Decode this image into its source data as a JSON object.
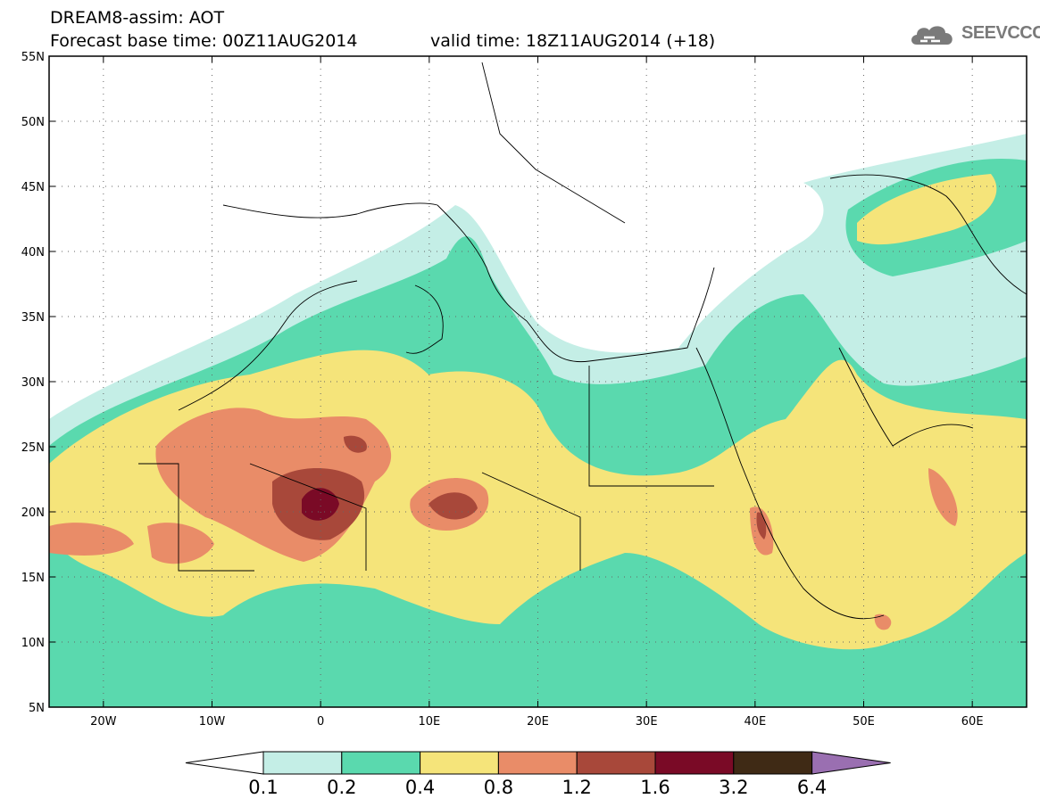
{
  "header": {
    "title": "DREAM8-assim: AOT",
    "base_time": "Forecast base time: 00Z11AUG2014",
    "valid_time": "valid time: 18Z11AUG2014 (+18)"
  },
  "logo": {
    "text": "SEEVCCC",
    "icon": "cloud-icon"
  },
  "map": {
    "lon_range": [
      -25,
      65
    ],
    "lat_range": [
      5,
      55
    ],
    "lon_ticks": [
      {
        "value": -20,
        "label": "20W"
      },
      {
        "value": -10,
        "label": "10W"
      },
      {
        "value": 0,
        "label": "0"
      },
      {
        "value": 10,
        "label": "10E"
      },
      {
        "value": 20,
        "label": "20E"
      },
      {
        "value": 30,
        "label": "30E"
      },
      {
        "value": 40,
        "label": "40E"
      },
      {
        "value": 50,
        "label": "50E"
      },
      {
        "value": 60,
        "label": "60E"
      }
    ],
    "lat_ticks": [
      {
        "value": 55,
        "label": "55N"
      },
      {
        "value": 50,
        "label": "50N"
      },
      {
        "value": 45,
        "label": "45N"
      },
      {
        "value": 40,
        "label": "40N"
      },
      {
        "value": 35,
        "label": "35N"
      },
      {
        "value": 30,
        "label": "30N"
      },
      {
        "value": 25,
        "label": "25N"
      },
      {
        "value": 20,
        "label": "20N"
      },
      {
        "value": 15,
        "label": "15N"
      },
      {
        "value": 10,
        "label": "10N"
      },
      {
        "value": 5,
        "label": "5N"
      }
    ],
    "grid": "dotted"
  },
  "colorbar": {
    "levels": [
      "0.1",
      "0.2",
      "0.4",
      "0.8",
      "1.2",
      "1.6",
      "3.2",
      "6.4"
    ],
    "colors": [
      "#ffffff",
      "#c4eee6",
      "#5ad9ae",
      "#f5e47a",
      "#e98c68",
      "#a8483a",
      "#7a0a26",
      "#3f2a15",
      "#9a6fb1"
    ]
  }
}
